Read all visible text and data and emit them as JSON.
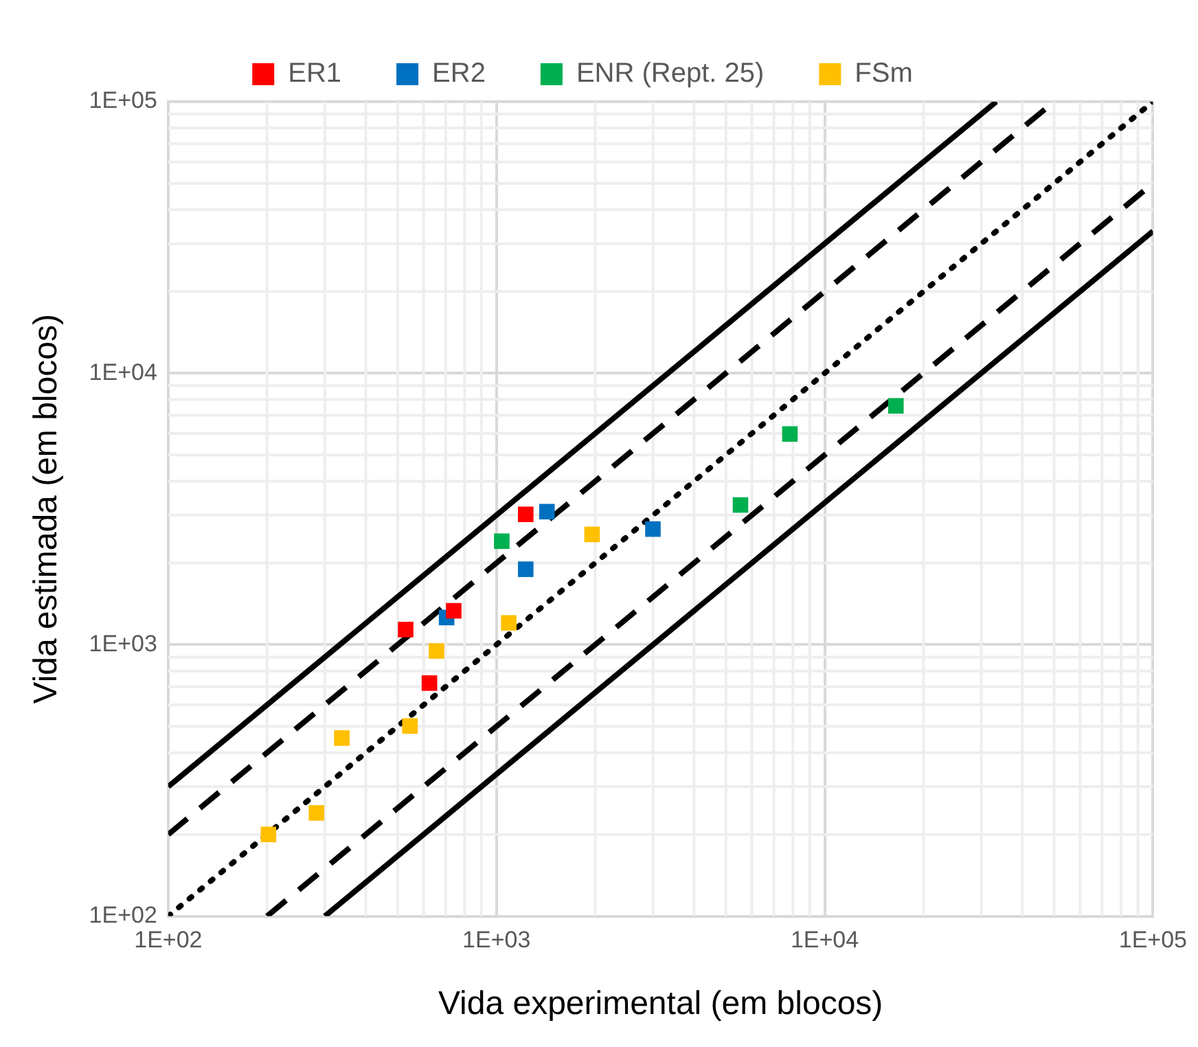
{
  "chart_data": {
    "type": "scatter",
    "xlabel": "Vida experimental (em blocos)",
    "ylabel": "Vida estimada (em blocos)",
    "log": "xy",
    "grid": true,
    "legend": "top",
    "marker": "square",
    "xlim": [
      100,
      100000
    ],
    "ylim": [
      100,
      100000
    ],
    "xticks": [
      {
        "value": 100,
        "label": "1E+02"
      },
      {
        "value": 1000,
        "label": "1E+03"
      },
      {
        "value": 10000,
        "label": "1E+04"
      },
      {
        "value": 100000,
        "label": "1E+05"
      }
    ],
    "yticks": [
      {
        "value": 100,
        "label": "1E+02"
      },
      {
        "value": 1000,
        "label": "1E+03"
      },
      {
        "value": 10000,
        "label": "1E+04"
      },
      {
        "value": 100000,
        "label": "1E+05"
      }
    ],
    "series": [
      {
        "type": "line",
        "color": "#000000",
        "line_style": "solid",
        "marker": "none",
        "x": [
          100,
          33333
        ],
        "values": [
          300,
          99999
        ]
      },
      {
        "type": "line",
        "color": "#000000",
        "line_style": "dashed",
        "marker": "none",
        "x": [
          100,
          50000
        ],
        "values": [
          200,
          100000
        ]
      },
      {
        "type": "line",
        "color": "#000000",
        "line_style": "dotted",
        "marker": "none",
        "x": [
          100,
          100000
        ],
        "values": [
          100,
          100000
        ]
      },
      {
        "type": "line",
        "color": "#000000",
        "line_style": "dashed",
        "marker": "none",
        "x": [
          200,
          100000
        ],
        "values": [
          100,
          50000
        ]
      },
      {
        "type": "line",
        "color": "#000000",
        "line_style": "solid",
        "marker": "none",
        "x": [
          300,
          100000
        ],
        "values": [
          100,
          33333
        ]
      },
      {
        "name": "ER1",
        "color": "#ff0000",
        "x": [
          529,
          625,
          741,
          1228
        ],
        "values": [
          1137,
          722,
          1333,
          3020
        ]
      },
      {
        "name": "ER2",
        "color": "#0070c0",
        "x": [
          705,
          1228,
          1425,
          2997
        ],
        "values": [
          1259,
          1896,
          3090,
          2666
        ]
      },
      {
        "name": "ENR (Rept. 25)",
        "color": "#00b050",
        "x": [
          1038,
          5540,
          7834,
          16480
        ],
        "values": [
          2405,
          3270,
          5970,
          7580
        ]
      },
      {
        "name": "FSm",
        "color": "#ffc000",
        "x": [
          202,
          283,
          338,
          545,
          657,
          1090,
          1956
        ],
        "values": [
          200,
          240,
          453,
          502,
          948,
          1203,
          2548
        ]
      }
    ]
  }
}
